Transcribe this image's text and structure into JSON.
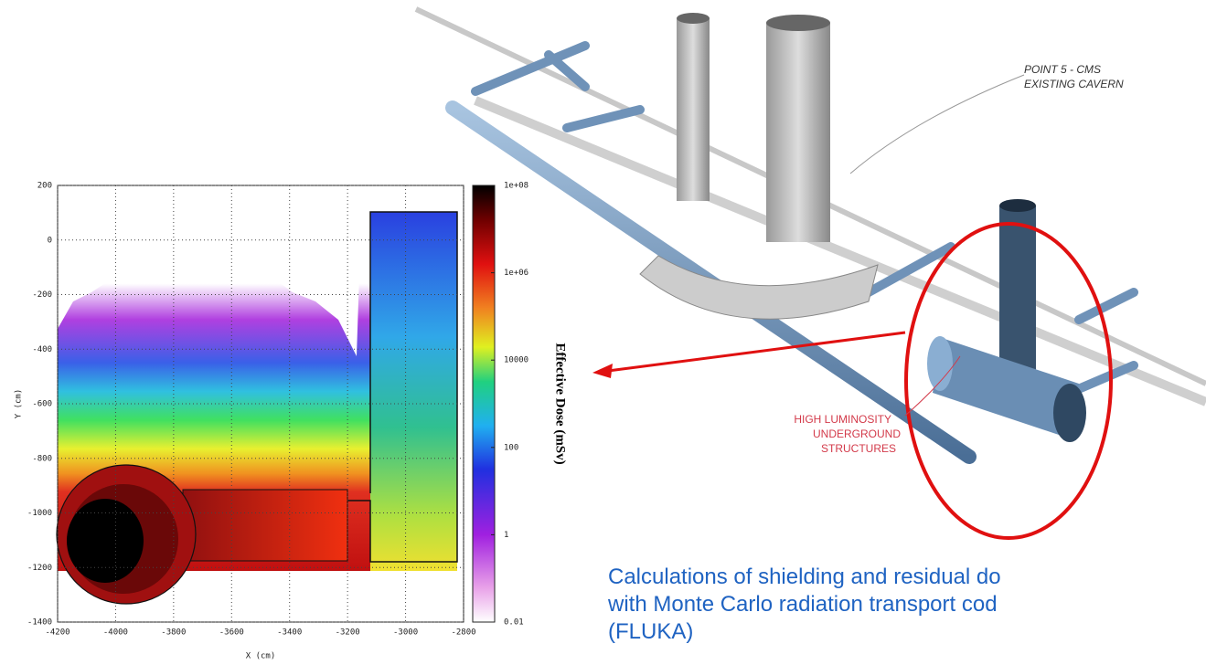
{
  "plot": {
    "x_label": "X (cm)",
    "y_label": "Y (cm)",
    "xlim": [
      -4200,
      -2800
    ],
    "ylim": [
      -1400,
      200
    ],
    "xticks": [
      -4200,
      -4000,
      -3800,
      -3600,
      -3400,
      -3200,
      -3000,
      -2800
    ],
    "yticks": [
      200,
      0,
      -200,
      -400,
      -600,
      -800,
      -1000,
      -1200,
      -1400
    ],
    "colorbar": {
      "label": "Effective Dose (mSv)",
      "lim": [
        0.01,
        100000000
      ],
      "ticks": [
        {
          "value": 100000000,
          "label": "1e+08"
        },
        {
          "value": 1000000,
          "label": "1e+06"
        },
        10000,
        100,
        1,
        0.01
      ]
    }
  },
  "render": {
    "labels": [
      "POINT 5 - CMS",
      "EXISTING CAVERN",
      "HIGH LUMINOSITY",
      "UNDERGROUND",
      "STRUCTURES"
    ]
  },
  "caption": {
    "lines": [
      "Calculations of shielding and residual do",
      "with Monte Carlo radiation transport cod",
      "(FLUKA)"
    ]
  }
}
